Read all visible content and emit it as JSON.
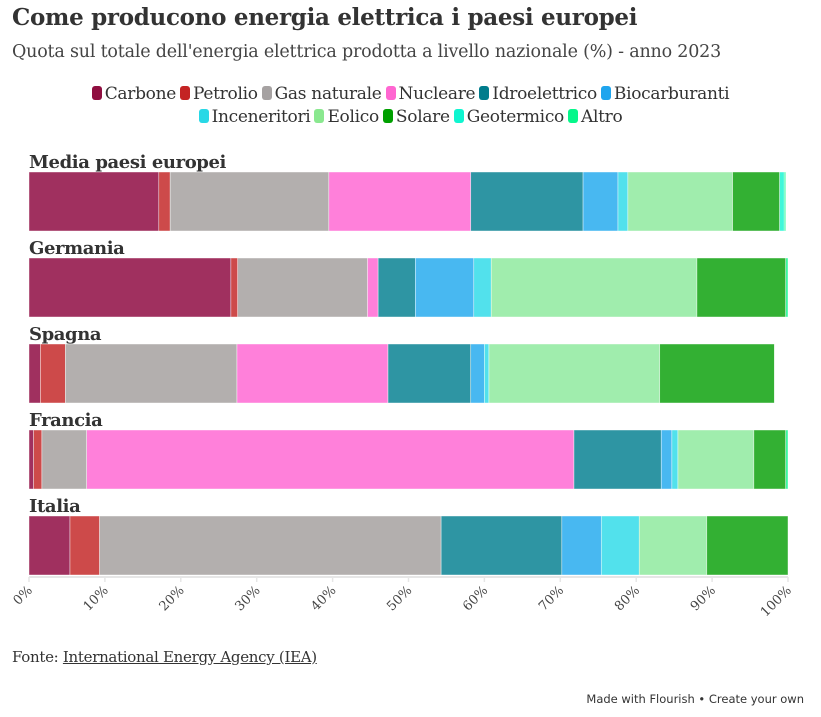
{
  "header": {
    "title": "Come producono energia elettrica i paesi europei",
    "subtitle": "Quota sul totale dell'energia elettrica prodotta a livello nazionale (%) - anno 2023"
  },
  "footer": {
    "source_label": "Fonte:",
    "source_link": "International Energy Agency (IEA)",
    "flourish": "Made with Flourish • Create your own"
  },
  "chart_data": {
    "type": "bar",
    "orientation": "horizontal",
    "stacked": true,
    "title": "Come producono energia elettrica i paesi europei",
    "subtitle": "Quota sul totale dell'energia elettrica prodotta a livello nazionale (%) - anno 2023",
    "legend_position": "top",
    "grid": false,
    "xlim": [
      0,
      100
    ],
    "x_ticks": [
      "0%",
      "10%",
      "20%",
      "30%",
      "40%",
      "50%",
      "60%",
      "70%",
      "80%",
      "90%",
      "100%"
    ],
    "categories": [
      "Media paesi europei",
      "Germania",
      "Spagna",
      "Francia",
      "Italia"
    ],
    "series": [
      {
        "name": "Carbone",
        "color": "#8f0e40",
        "bar_color": "#a0305f",
        "values": [
          17.1,
          26.6,
          1.5,
          0.6,
          5.4
        ]
      },
      {
        "name": "Petrolio",
        "color": "#c42424",
        "bar_color": "#cd4a4a",
        "values": [
          1.5,
          0.9,
          3.3,
          1.1,
          3.9
        ]
      },
      {
        "name": "Gas naturale",
        "color": "#a6a2a2",
        "bar_color": "#b3afae",
        "values": [
          20.9,
          17.1,
          22.6,
          5.9,
          45.0
        ]
      },
      {
        "name": "Nucleare",
        "color": "#ff66d1",
        "bar_color": "#ff80da",
        "values": [
          18.7,
          1.4,
          19.9,
          64.2,
          0
        ]
      },
      {
        "name": "Idroelettrico",
        "color": "#007c8c",
        "bar_color": "#2e95a3",
        "values": [
          14.8,
          4.9,
          10.9,
          11.5,
          15.9
        ]
      },
      {
        "name": "Biocarburanti",
        "color": "#1fa5ee",
        "bar_color": "#48b8f1",
        "values": [
          4.6,
          7.7,
          1.8,
          1.4,
          5.2
        ]
      },
      {
        "name": "Inceneritori",
        "color": "#28d8e6",
        "bar_color": "#52e1ec",
        "values": [
          1.3,
          2.3,
          0.6,
          0.8,
          5.0
        ]
      },
      {
        "name": "Eolico",
        "color": "#8ae88f",
        "bar_color": "#a0edad",
        "values": [
          13.8,
          27.1,
          22.5,
          10.0,
          8.9
        ]
      },
      {
        "name": "Solare",
        "color": "#00a000",
        "bar_color": "#33b033",
        "values": [
          6.2,
          11.7,
          15.1,
          4.2,
          10.7
        ]
      },
      {
        "name": "Geotermico",
        "color": "#0ff5d0",
        "bar_color": "#3ff7d9",
        "values": [
          0.6,
          0,
          0,
          0,
          0
        ]
      },
      {
        "name": "Altro",
        "color": "#05f78a",
        "bar_color": "#37f9a1",
        "values": [
          0.2,
          0.3,
          0,
          0.3,
          0
        ]
      }
    ]
  }
}
